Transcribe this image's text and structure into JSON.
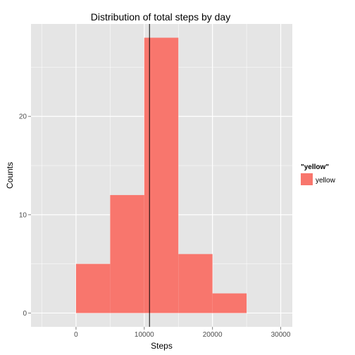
{
  "chart_data": {
    "type": "bar",
    "title": "Distribution of total steps by day",
    "xlabel": "Steps",
    "ylabel": "Counts",
    "bins": [
      {
        "start": 0,
        "end": 5000,
        "count": 5
      },
      {
        "start": 5000,
        "end": 10000,
        "count": 12
      },
      {
        "start": 10000,
        "end": 15000,
        "count": 28
      },
      {
        "start": 15000,
        "end": 20000,
        "count": 6
      },
      {
        "start": 20000,
        "end": 25000,
        "count": 2
      }
    ],
    "vline": 10766,
    "xlim": [
      -6600,
      31700
    ],
    "ylim": [
      -1.4,
      29.4
    ],
    "xticks": [
      0,
      10000,
      20000,
      30000
    ],
    "xtick_labels": [
      "0",
      "10000",
      "20000",
      "30000"
    ],
    "yticks": [
      0,
      10,
      20
    ],
    "ytick_labels": [
      "0",
      "10",
      "20"
    ],
    "bar_color": "#f8766d",
    "panel_color": "#e5e5e5",
    "grid": true,
    "legend": {
      "title": "\"yellow\"",
      "label": "yellow",
      "color": "#f8766d",
      "position": "right"
    }
  }
}
